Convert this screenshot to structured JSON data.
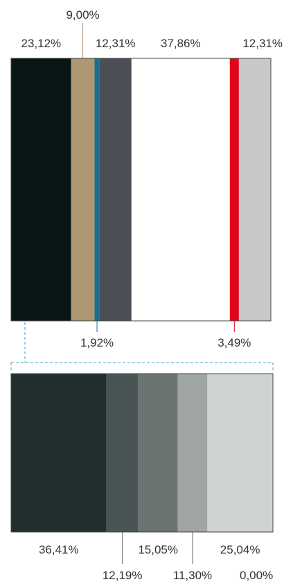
{
  "chart_data": [
    {
      "type": "bar",
      "orientation": "horizontal-stacked",
      "x_range": [
        0,
        100
      ],
      "unit": "%",
      "segments": [
        {
          "value": 23.12,
          "label": "23,12%",
          "color": "#081716"
        },
        {
          "value": 9.0,
          "label": "9,00%",
          "color": "#ad9672"
        },
        {
          "value": 1.92,
          "label": "1,92%",
          "color": "#1c6d8c"
        },
        {
          "value": 12.31,
          "label": "12,31%",
          "color": "#4b4e55"
        },
        {
          "value": 37.86,
          "label": "37,86%",
          "color": "#ffffff"
        },
        {
          "value": 3.49,
          "label": "3,49%",
          "color": "#e0061c"
        },
        {
          "value": 12.31,
          "label": "12,31%",
          "color": "#c8c8c8"
        }
      ],
      "label_placement": [
        "top",
        "top-raised",
        "bottom",
        "top",
        "top",
        "bottom",
        "top"
      ],
      "grid": false,
      "legend": "none"
    },
    {
      "type": "bar",
      "orientation": "horizontal-stacked",
      "breakdown_of_segment": "23,12%",
      "x_range": [
        0,
        100
      ],
      "unit": "%",
      "segments": [
        {
          "value": 36.41,
          "label": "36,41%",
          "color": "#222f2e"
        },
        {
          "value": 12.19,
          "label": "12,19%",
          "color": "#485554"
        },
        {
          "value": 15.05,
          "label": "15,05%",
          "color": "#6c7473"
        },
        {
          "value": 11.3,
          "label": "11,30%",
          "color": "#9ea5a4"
        },
        {
          "value": 25.04,
          "label": "25,04%",
          "color": "#ced3d2"
        },
        {
          "value": 0.0,
          "label": "0,00%",
          "color": "#ffffff"
        }
      ],
      "label_placement": [
        "bottom",
        "bottom-low",
        "bottom",
        "bottom-low",
        "bottom",
        "bottom-low"
      ],
      "grid": false,
      "legend": "none"
    }
  ]
}
